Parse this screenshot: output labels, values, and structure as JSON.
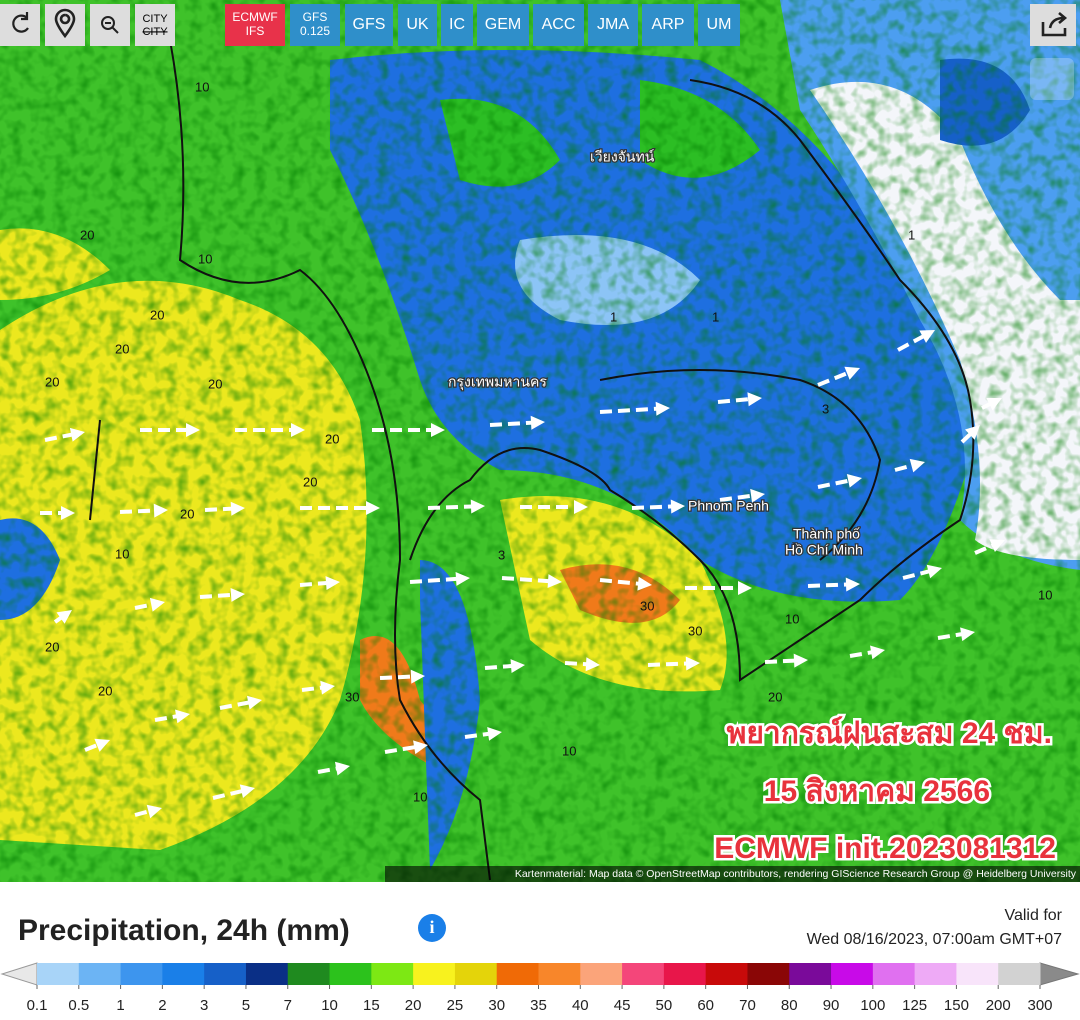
{
  "toolbar": {
    "city": "CITY",
    "models": [
      "ECMWF IFS",
      "GFS 0.125",
      "GFS",
      "UK",
      "IC",
      "GEM",
      "ACC",
      "JMA",
      "ARP",
      "UM"
    ]
  },
  "map": {
    "places": [
      "กรุงเทพมหานคร",
      "Phnom Penh",
      "Thành phố",
      "Hồ Chí Minh",
      "เวียงจันทน์"
    ],
    "contour_labels": [
      "20",
      "20",
      "20",
      "20",
      "20",
      "20",
      "20",
      "20",
      "20",
      "20",
      "10",
      "10",
      "10",
      "10",
      "30",
      "30",
      "30",
      "20",
      "10",
      "10",
      "1",
      "1",
      "3",
      "3",
      "1",
      "10"
    ],
    "overlay": [
      "พยากรณ์ฝนสะสม 24 ชม.",
      "15 สิงหาคม 2566",
      "ECMWF init.2023081312"
    ],
    "attribution": "Kartenmaterial: Map data © OpenStreetMap contributors, rendering GIScience Research Group @ Heidelberg University"
  },
  "legend": {
    "title": "Precipitation, 24h (mm)",
    "valid_label": "Valid for",
    "valid_time": "Wed 08/16/2023, 07:00am GMT+07",
    "ticks": [
      0.1,
      0.5,
      1,
      2,
      3,
      5,
      7,
      10,
      15,
      20,
      25,
      30,
      35,
      40,
      45,
      50,
      60,
      70,
      80,
      90,
      100,
      125,
      150,
      200,
      300
    ],
    "colors": [
      "#a8d4f8",
      "#6cb4f4",
      "#3d95ee",
      "#1a7fe8",
      "#1660c8",
      "#0a2f86",
      "#1f8a1f",
      "#2cc21c",
      "#7de814",
      "#f8f21e",
      "#e4d40a",
      "#f06a06",
      "#f8862a",
      "#fba47a",
      "#f4467a",
      "#e8164a",
      "#c80a0a",
      "#8a0606",
      "#7a0a9a",
      "#c80ae8",
      "#e070f0",
      "#eeaaf6",
      "#f8e4fa",
      "#d2d2d2"
    ],
    "low_color": "#e8e8e8",
    "high_color": "#8a8a8a"
  }
}
